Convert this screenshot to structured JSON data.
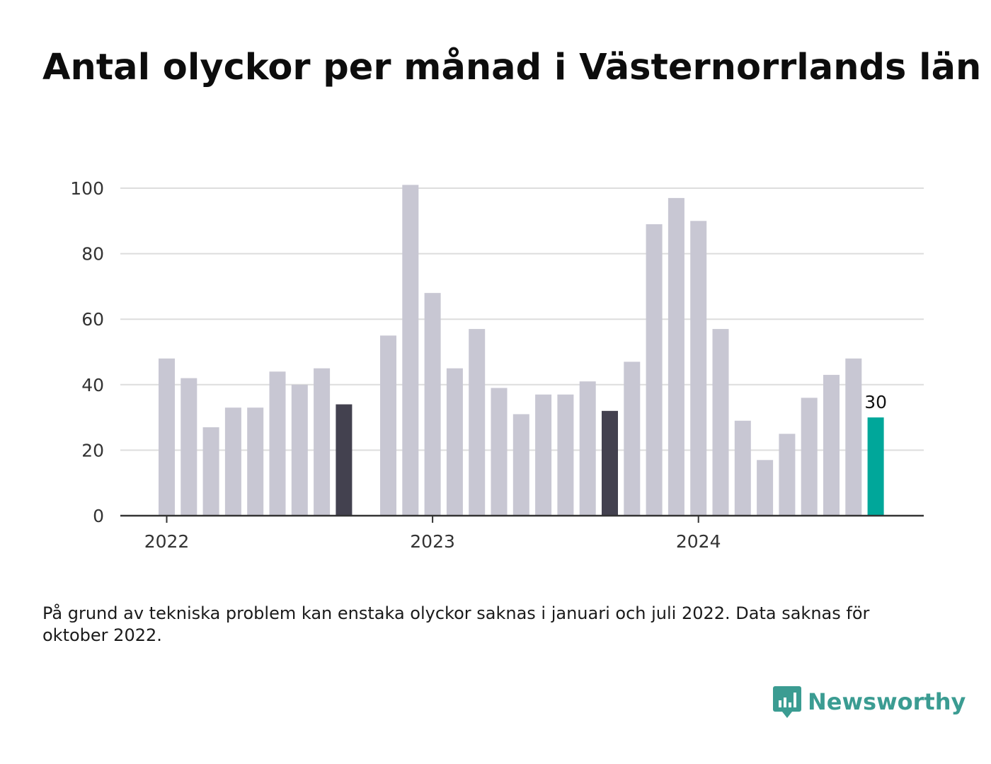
{
  "title": "Antal olyckor per månad i Västernorrlands län",
  "note": "På grund av tekniska problem kan enstaka olyckor saknas i januari och juli 2022. Data saknas för oktober 2022.",
  "brand": {
    "name": "Newsworthy",
    "icon": "newsworthy-chart-logo-icon",
    "color": "#3b9c92"
  },
  "colors": {
    "default": "#c8c7d3",
    "highlight": "#43414f",
    "latest": "#00a79a",
    "grid": "#dddddd",
    "axis": "#333333"
  },
  "chart_data": {
    "type": "bar",
    "categories": [
      "2022-01",
      "2022-02",
      "2022-03",
      "2022-04",
      "2022-05",
      "2022-06",
      "2022-07",
      "2022-08",
      "2022-09",
      "2022-10",
      "2022-11",
      "2022-12",
      "2023-01",
      "2023-02",
      "2023-03",
      "2023-04",
      "2023-05",
      "2023-06",
      "2023-07",
      "2023-08",
      "2023-09",
      "2023-10",
      "2023-11",
      "2023-12",
      "2024-01",
      "2024-02",
      "2024-03",
      "2024-04",
      "2024-05",
      "2024-06",
      "2024-07",
      "2024-08",
      "2024-09"
    ],
    "values": [
      48,
      42,
      27,
      33,
      33,
      44,
      40,
      45,
      34,
      null,
      55,
      101,
      68,
      45,
      57,
      39,
      31,
      37,
      37,
      41,
      32,
      47,
      89,
      97,
      90,
      57,
      29,
      17,
      25,
      36,
      43,
      48,
      30
    ],
    "highlight": [
      "2022-09",
      "2023-09"
    ],
    "latest": "2024-09",
    "latest_label": "30",
    "ylim": [
      0,
      100
    ],
    "yticks": [
      0,
      20,
      40,
      60,
      80,
      100
    ],
    "xticks": [
      {
        "category": "2022-01",
        "label": "2022"
      },
      {
        "category": "2023-01",
        "label": "2023"
      },
      {
        "category": "2024-01",
        "label": "2024"
      }
    ],
    "grid": true,
    "legend": "none"
  }
}
